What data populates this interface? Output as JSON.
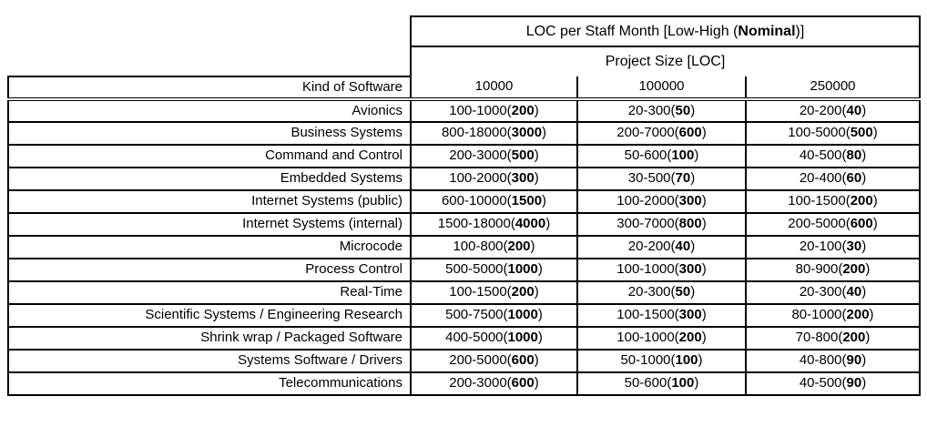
{
  "table": {
    "title_prefix": "LOC per Staff Month [Low-High (",
    "title_bold": "Nominal",
    "title_suffix": ")]",
    "subtitle": "Project Size [LOC]",
    "row_header": "Kind of Software",
    "size_columns": [
      "10000",
      "100000",
      "250000"
    ],
    "rows": [
      {
        "label": "Avionics",
        "cells": [
          {
            "range": "100-1000",
            "nominal": "200"
          },
          {
            "range": "20-300",
            "nominal": "50"
          },
          {
            "range": "20-200",
            "nominal": "40"
          }
        ]
      },
      {
        "label": "Business Systems",
        "cells": [
          {
            "range": "800-18000",
            "nominal": "3000"
          },
          {
            "range": "200-7000",
            "nominal": "600"
          },
          {
            "range": "100-5000",
            "nominal": "500"
          }
        ]
      },
      {
        "label": "Command and Control",
        "cells": [
          {
            "range": "200-3000",
            "nominal": "500"
          },
          {
            "range": "50-600",
            "nominal": "100"
          },
          {
            "range": "40-500",
            "nominal": "80"
          }
        ]
      },
      {
        "label": "Embedded Systems",
        "cells": [
          {
            "range": "100-2000",
            "nominal": "300"
          },
          {
            "range": "30-500",
            "nominal": "70"
          },
          {
            "range": "20-400",
            "nominal": "60"
          }
        ]
      },
      {
        "label": "Internet Systems (public)",
        "cells": [
          {
            "range": "600-10000",
            "nominal": "1500"
          },
          {
            "range": "100-2000",
            "nominal": "300"
          },
          {
            "range": "100-1500",
            "nominal": "200"
          }
        ]
      },
      {
        "label": "Internet Systems (internal)",
        "cells": [
          {
            "range": "1500-18000",
            "nominal": "4000"
          },
          {
            "range": "300-7000",
            "nominal": "800"
          },
          {
            "range": "200-5000",
            "nominal": "600"
          }
        ]
      },
      {
        "label": "Microcode",
        "cells": [
          {
            "range": "100-800",
            "nominal": "200"
          },
          {
            "range": "20-200",
            "nominal": "40"
          },
          {
            "range": "20-100",
            "nominal": "30"
          }
        ]
      },
      {
        "label": "Process Control",
        "cells": [
          {
            "range": "500-5000",
            "nominal": "1000"
          },
          {
            "range": "100-1000",
            "nominal": "300"
          },
          {
            "range": "80-900",
            "nominal": "200"
          }
        ]
      },
      {
        "label": "Real-Time",
        "cells": [
          {
            "range": "100-1500",
            "nominal": "200"
          },
          {
            "range": "20-300",
            "nominal": "50"
          },
          {
            "range": "20-300",
            "nominal": "40"
          }
        ]
      },
      {
        "label": "Scientific Systems / Engineering Research",
        "cells": [
          {
            "range": "500-7500",
            "nominal": "1000"
          },
          {
            "range": "100-1500",
            "nominal": "300"
          },
          {
            "range": "80-1000",
            "nominal": "200"
          }
        ]
      },
      {
        "label": "Shrink wrap / Packaged Software",
        "cells": [
          {
            "range": "400-5000",
            "nominal": "1000"
          },
          {
            "range": "100-1000",
            "nominal": "200"
          },
          {
            "range": "70-800",
            "nominal": "200"
          }
        ]
      },
      {
        "label": "Systems Software / Drivers",
        "cells": [
          {
            "range": "200-5000",
            "nominal": "600"
          },
          {
            "range": "50-1000",
            "nominal": "100"
          },
          {
            "range": "40-800",
            "nominal": "90"
          }
        ]
      },
      {
        "label": "Telecommunications",
        "cells": [
          {
            "range": "200-3000",
            "nominal": "600"
          },
          {
            "range": "50-600",
            "nominal": "100"
          },
          {
            "range": "40-500",
            "nominal": "90"
          }
        ]
      }
    ],
    "colors": {
      "border": "#000000",
      "background": "#ffffff",
      "text": "#000000"
    }
  }
}
